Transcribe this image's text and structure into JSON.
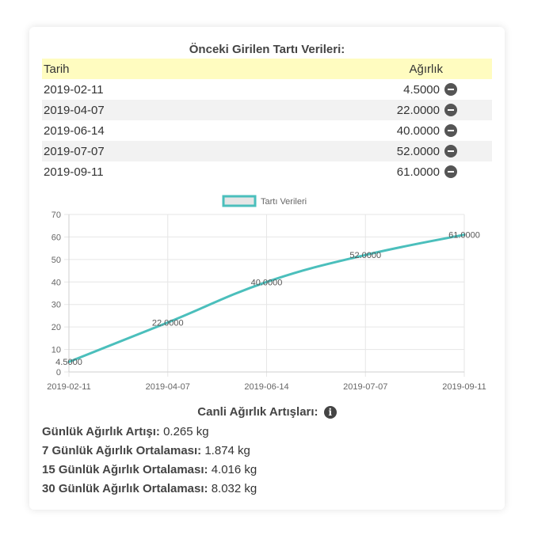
{
  "table": {
    "title": "Önceki Girilen Tartı Verileri:",
    "headers": {
      "date": "Tarih",
      "weight": "Ağırlık"
    },
    "rows": [
      {
        "date": "2019-02-11",
        "weight": "4.5000"
      },
      {
        "date": "2019-04-07",
        "weight": "22.0000"
      },
      {
        "date": "2019-06-14",
        "weight": "40.0000"
      },
      {
        "date": "2019-07-07",
        "weight": "52.0000"
      },
      {
        "date": "2019-09-11",
        "weight": "61.0000"
      }
    ]
  },
  "chart_data": {
    "type": "line",
    "categories": [
      "2019-02-11",
      "2019-04-07",
      "2019-06-14",
      "2019-07-07",
      "2019-09-11"
    ],
    "series": [
      {
        "name": "Tartı Verileri",
        "values": [
          4.5,
          22,
          40,
          52,
          61
        ],
        "labels": [
          "4.5000",
          "22.0000",
          "40.0000",
          "52.0000",
          "61.0000"
        ]
      }
    ],
    "yticks": [
      0,
      10,
      20,
      30,
      40,
      50,
      60,
      70
    ],
    "ylim": [
      0,
      70
    ],
    "grid": true,
    "legend": "top",
    "line_color": "#4bbfbc",
    "legend_fill": "#e6e6e6"
  },
  "stats": {
    "title": "Canli Ağırlık Artışları:",
    "info_icon": "info-icon",
    "items": [
      {
        "label": "Günlük Ağırlık Artışı:",
        "value": "0.265 kg"
      },
      {
        "label": "7 Günlük Ağırlık Ortalaması:",
        "value": "1.874 kg"
      },
      {
        "label": "15 Günlük Ağırlık Ortalaması:",
        "value": "4.016 kg"
      },
      {
        "label": "30 Günlük Ağırlık Ortalaması:",
        "value": "8.032 kg"
      }
    ]
  }
}
